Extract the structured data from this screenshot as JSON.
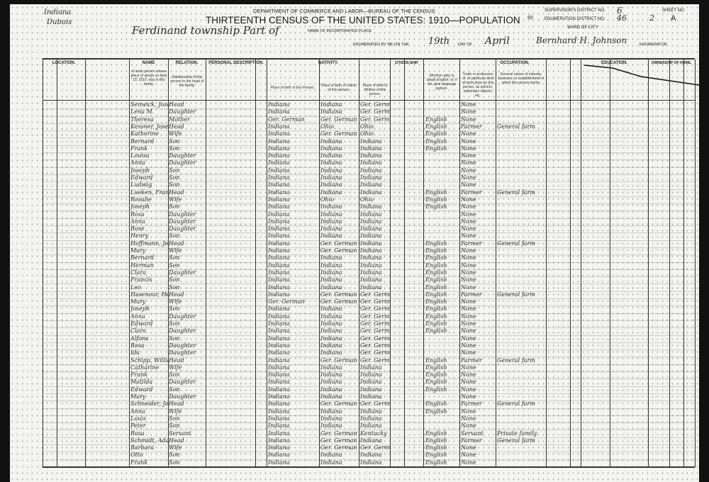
{
  "header": {
    "state": "Indiana",
    "county": "Dubois",
    "department": "DEPARTMENT OF COMMERCE AND LABOR—BUREAU OF THE CENSUS",
    "title": "THIRTEENTH CENSUS OF THE UNITED STATES: 1910—POPULATION",
    "township": "Ferdinand township  Part of",
    "incorporated_place_label": "NAME OF INCORPORATED PLACE",
    "enumerated_label": "ENUMERATED BY ME ON THE",
    "enumerated_day": "19th",
    "day_of_label": "DAY OF",
    "enumerated_month": "April",
    "enumerator_name": "Bernhard H. Johnson",
    "enumerator_label": "ENUMERATOR.",
    "supervisor_label": "SUPERVISOR'S DISTRICT NO.",
    "supervisor_no": "6",
    "enumeration_label": "ENUMERATION DISTRICT NO.",
    "enumeration_no": "46",
    "ward_label": "WARD OF CITY",
    "sheet_label": "SHEET NO.",
    "sheet_no": "2",
    "sheet_side": "A",
    "margin_no": "93"
  },
  "sections": {
    "location": "LOCATION.",
    "name": "NAME",
    "relation": "RELATION.",
    "personal": "PERSONAL DESCRIPTION.",
    "nativity": "NATIVITY.",
    "citizenship": "CITIZEN-SHIP.",
    "occupation": "OCCUPATION.",
    "education": "EDUCATION.",
    "ownership": "OWNERSHIP OF HOME."
  },
  "subheads": {
    "name_desc": "of each person whose place of abode on April 15, 1910, was in this family.",
    "relation_desc": "Relationship of this person to the head of the family.",
    "birth_self": "Place of birth of this Person.",
    "birth_father": "Place of birth of Father of this person.",
    "birth_mother": "Place of birth of Mother of this person.",
    "language": "Whether able to speak English; or, if not, give language spoken.",
    "trade": "Trade or profession of, or particular kind of work done by this person, as spinner, salesman, laborer, etc.",
    "industry": "General nature of industry, business, or establishment in which this person works."
  },
  "rows": [
    [
      "Senwick, Joseph L.",
      "Head",
      "Indiana",
      "Indiana",
      "Ger. German",
      "",
      "None",
      ""
    ],
    [
      "  Lena M.",
      "Daughter",
      "Indiana",
      "Indiana",
      "Ger. German",
      "",
      "None",
      ""
    ],
    [
      "  Theresa",
      "Mother",
      "Ger. German",
      "Ger. German",
      "Ger. German",
      "English",
      "None",
      ""
    ],
    [
      "Kessner, Joseph",
      "Head",
      "Indiana",
      "Ohio",
      "Ohio",
      "English",
      "Farmer",
      "General farm"
    ],
    [
      "  Katherine",
      "Wife",
      "Indiana",
      "Ger. German",
      "Ohio",
      "English",
      "None",
      ""
    ],
    [
      "  Bernard",
      "Son",
      "Indiana",
      "Indiana",
      "Indiana",
      "English",
      "None",
      ""
    ],
    [
      "  Frank",
      "Son",
      "Indiana",
      "Indiana",
      "Indiana",
      "English",
      "None",
      ""
    ],
    [
      "  Louisa",
      "Daughter",
      "Indiana",
      "Indiana",
      "Indiana",
      "",
      "None",
      ""
    ],
    [
      "  Anna",
      "Daughter",
      "Indiana",
      "Indiana",
      "Indiana",
      "",
      "None",
      ""
    ],
    [
      "  Joseph",
      "Son",
      "Indiana",
      "Indiana",
      "Indiana",
      "",
      "None",
      ""
    ],
    [
      "  Edward",
      "Son",
      "Indiana",
      "Indiana",
      "Indiana",
      "",
      "None",
      ""
    ],
    [
      "  Ludwig",
      "Son",
      "Indiana",
      "Indiana",
      "Indiana",
      "",
      "None",
      ""
    ],
    [
      "Lueken, Frank",
      "Head",
      "Indiana",
      "Indiana",
      "Indiana",
      "English",
      "Farmer",
      "General farm"
    ],
    [
      "  Rosalie",
      "Wife",
      "Indiana",
      "Ohio",
      "Ohio",
      "English",
      "None",
      ""
    ],
    [
      "  Joseph",
      "Son",
      "Indiana",
      "Indiana",
      "Indiana",
      "English",
      "None",
      ""
    ],
    [
      "  Rosa",
      "Daughter",
      "Indiana",
      "Indiana",
      "Indiana",
      "",
      "None",
      ""
    ],
    [
      "  Anna",
      "Daughter",
      "Indiana",
      "Indiana",
      "Indiana",
      "",
      "None",
      ""
    ],
    [
      "  Rose",
      "Daughter",
      "Indiana",
      "Indiana",
      "Indiana",
      "",
      "None",
      ""
    ],
    [
      "  Henry",
      "Son",
      "Indiana",
      "Indiana",
      "Indiana",
      "",
      "None",
      ""
    ],
    [
      "Hoffmann, Joseph",
      "Head",
      "Indiana",
      "Ger. German",
      "Indiana",
      "English",
      "Farmer",
      "General farm"
    ],
    [
      "  Mary",
      "Wife",
      "Indiana",
      "Ger. German",
      "Indiana",
      "English",
      "None",
      ""
    ],
    [
      "  Bernard",
      "Son",
      "Indiana",
      "Indiana",
      "Indiana",
      "English",
      "None",
      ""
    ],
    [
      "  Herman",
      "Son",
      "Indiana",
      "Indiana",
      "Indiana",
      "English",
      "None",
      ""
    ],
    [
      "  Clara",
      "Daughter",
      "Indiana",
      "Indiana",
      "Indiana",
      "English",
      "None",
      ""
    ],
    [
      "  Francis",
      "Son",
      "Indiana",
      "Indiana",
      "Indiana",
      "English",
      "None",
      ""
    ],
    [
      "  Leo",
      "Son",
      "Indiana",
      "Indiana",
      "Indiana",
      "English",
      "None",
      ""
    ],
    [
      "Hasenour, Henry",
      "Head",
      "Indiana",
      "Ger. German",
      "Ger. German",
      "English",
      "Farmer",
      "General farm"
    ],
    [
      "  Mary",
      "Wife",
      "Ger. German",
      "Ger. German",
      "Ger. German",
      "English",
      "None",
      ""
    ],
    [
      "  Joseph",
      "Son",
      "Indiana",
      "Indiana",
      "Ger. German",
      "English",
      "None",
      ""
    ],
    [
      "  Anna",
      "Daughter",
      "Indiana",
      "Indiana",
      "Ger. German",
      "English",
      "None",
      ""
    ],
    [
      "  Edward",
      "Son",
      "Indiana",
      "Indiana",
      "Ger. German",
      "English",
      "None",
      ""
    ],
    [
      "  Clara",
      "Daughter",
      "Indiana",
      "Indiana",
      "Ger. German",
      "English",
      "None",
      ""
    ],
    [
      "  Alfons",
      "Son",
      "Indiana",
      "Indiana",
      "Ger. German",
      "",
      "None",
      ""
    ],
    [
      "  Rosa",
      "Daughter",
      "Indiana",
      "Indiana",
      "Ger. German",
      "",
      "None",
      ""
    ],
    [
      "  Ida",
      "Daughter",
      "Indiana",
      "Indiana",
      "Ger. German",
      "",
      "None",
      ""
    ],
    [
      "Schipp, William",
      "Head",
      "Indiana",
      "Ger. German",
      "Ger. German",
      "English",
      "Farmer",
      "General farm"
    ],
    [
      "  Catharine",
      "Wife",
      "Indiana",
      "Indiana",
      "Indiana",
      "English",
      "None",
      ""
    ],
    [
      "  Frank",
      "Son",
      "Indiana",
      "Indiana",
      "Indiana",
      "English",
      "None",
      ""
    ],
    [
      "  Matilda",
      "Daughter",
      "Indiana",
      "Indiana",
      "Indiana",
      "English",
      "None",
      ""
    ],
    [
      "  Edward",
      "Son",
      "Indiana",
      "Indiana",
      "Indiana",
      "English",
      "None",
      ""
    ],
    [
      "  Mary",
      "Daughter",
      "Indiana",
      "Indiana",
      "Indiana",
      "",
      "None",
      ""
    ],
    [
      "Schneider, John",
      "Head",
      "Indiana",
      "Ger. German",
      "Ger. German",
      "English",
      "Farmer",
      "General farm"
    ],
    [
      "  Anna",
      "Wife",
      "Indiana",
      "Indiana",
      "Indiana",
      "English",
      "None",
      ""
    ],
    [
      "  Louis",
      "Son",
      "Indiana",
      "Indiana",
      "Indiana",
      "",
      "None",
      ""
    ],
    [
      "  Peter",
      "Son",
      "Indiana",
      "Indiana",
      "Indiana",
      "",
      "None",
      ""
    ],
    [
      "  Rosa",
      "Servant",
      "Indiana",
      "Ger. German",
      "Kentucky",
      "English",
      "Servant",
      "Private family"
    ],
    [
      "Schmidt, Adam",
      "Head",
      "Indiana",
      "Ger. German",
      "Indiana",
      "English",
      "Farmer",
      "General farm"
    ],
    [
      "  Barbara",
      "Wife",
      "Indiana",
      "Ger. German",
      "Ger. German",
      "English",
      "None",
      ""
    ],
    [
      "  Otto",
      "Son",
      "Indiana",
      "Indiana",
      "Indiana",
      "English",
      "None",
      ""
    ],
    [
      "  Frank",
      "Son",
      "Indiana",
      "Indiana",
      "Indiana",
      "English",
      "None",
      ""
    ]
  ]
}
